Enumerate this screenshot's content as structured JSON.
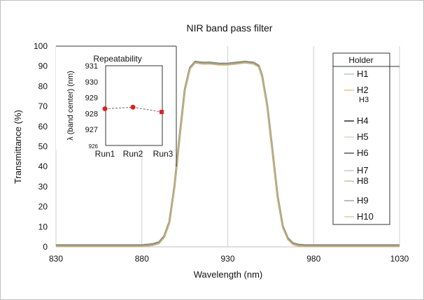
{
  "chart_data": {
    "type": "line",
    "title": "NIR   band pass filter",
    "xlabel": "Wavelength  (nm)",
    "ylabel": "Transmittance (%)",
    "xlim": [
      830,
      1030
    ],
    "ylim": [
      0,
      100
    ],
    "x_ticks": [
      "830",
      "880",
      "930",
      "980",
      "1030"
    ],
    "y_ticks": [
      "0",
      "10",
      "20",
      "30",
      "40",
      "50",
      "60",
      "70",
      "80",
      "90",
      "100"
    ],
    "grid": "vertical",
    "line_colors": [
      "#9aa7b0",
      "#e0a060",
      "#b8b050",
      "#2a2a2a",
      "#c8c8a0",
      "#555555",
      "#a0b0a0",
      "#b0a070",
      "#707890",
      "#c8b078"
    ],
    "series_shape": {
      "x": [
        830,
        880,
        886,
        890,
        893,
        896,
        899,
        902,
        905,
        908,
        911,
        915,
        920,
        925,
        930,
        935,
        940,
        945,
        948,
        950,
        953,
        956,
        959,
        962,
        965,
        968,
        971,
        975,
        980,
        1030
      ],
      "y": [
        0.5,
        0.5,
        1,
        2,
        5,
        12,
        30,
        55,
        78,
        89,
        92,
        91.5,
        91.5,
        91,
        91,
        91.5,
        92,
        91.5,
        90,
        85,
        70,
        48,
        25,
        10,
        4,
        1.5,
        0.8,
        0.5,
        0.5,
        0.5
      ]
    },
    "legend": {
      "title": "Holder",
      "position": "right",
      "entries": [
        "H1",
        "H2",
        "H3",
        "H4",
        "H5",
        "H6",
        "H7",
        "H8",
        "H9",
        "H10"
      ]
    },
    "inset": {
      "type": "scatter",
      "title": "Repeatability",
      "ylabel": "λ (band center)  (nm)",
      "position": "top-left",
      "categories": [
        "Run1",
        "Run2",
        "Run3"
      ],
      "values": [
        928.3,
        928.4,
        928.1
      ],
      "ylim": [
        926,
        931
      ],
      "y_ticks": [
        "926",
        "927",
        "928",
        "929",
        "930",
        "931"
      ],
      "point_color": "#e02020"
    }
  }
}
